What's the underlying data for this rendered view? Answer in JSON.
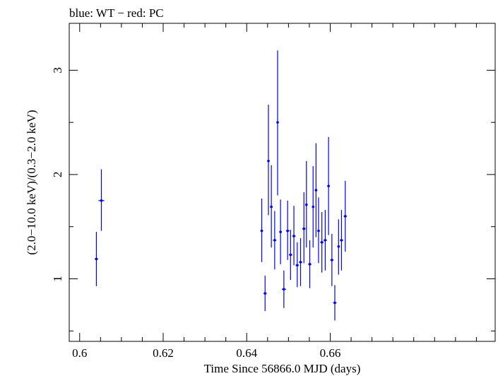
{
  "chart_data": {
    "type": "scatter",
    "title": "blue: WT − red: PC",
    "xlabel": "Time Since 56866.0 MJD (days)",
    "ylabel": "(2.0−10.0 keV)/(0.3−2.0 keV)",
    "xlim": [
      0.5975,
      0.6995
    ],
    "ylim": [
      0.4,
      3.45
    ],
    "x_ticks": [
      0.6,
      0.62,
      0.64,
      0.66
    ],
    "x_tick_labels": [
      "0.6",
      "0.62",
      "0.64",
      "0.66"
    ],
    "y_ticks": [
      1,
      2,
      3
    ],
    "y_tick_labels": [
      "1",
      "2",
      "3"
    ],
    "grid": false,
    "series": [
      {
        "name": "WT",
        "color": "#0000ff",
        "points": [
          {
            "x": 0.604,
            "y": 1.19,
            "xerr": 0.0004,
            "ylo": 0.93,
            "yhi": 1.45
          },
          {
            "x": 0.6052,
            "y": 1.75,
            "xerr": 0.0007,
            "ylo": 1.46,
            "yhi": 2.05
          },
          {
            "x": 0.6436,
            "y": 1.46,
            "xerr": 0.0003,
            "ylo": 1.16,
            "yhi": 1.77
          },
          {
            "x": 0.6444,
            "y": 0.86,
            "xerr": 0.0004,
            "ylo": 0.69,
            "yhi": 1.03
          },
          {
            "x": 0.6452,
            "y": 2.13,
            "xerr": 0.0003,
            "ylo": 1.61,
            "yhi": 2.67
          },
          {
            "x": 0.6459,
            "y": 1.69,
            "xerr": 0.0003,
            "ylo": 1.3,
            "yhi": 2.09
          },
          {
            "x": 0.6467,
            "y": 1.37,
            "xerr": 0.0004,
            "ylo": 1.09,
            "yhi": 1.65
          },
          {
            "x": 0.6474,
            "y": 2.5,
            "xerr": 0.0002,
            "ylo": 1.8,
            "yhi": 3.19
          },
          {
            "x": 0.6481,
            "y": 1.45,
            "xerr": 0.0003,
            "ylo": 1.14,
            "yhi": 1.76
          },
          {
            "x": 0.6489,
            "y": 0.9,
            "xerr": 0.0005,
            "ylo": 0.72,
            "yhi": 1.08
          },
          {
            "x": 0.6498,
            "y": 1.46,
            "xerr": 0.0004,
            "ylo": 1.18,
            "yhi": 1.75
          },
          {
            "x": 0.6505,
            "y": 1.23,
            "xerr": 0.0004,
            "ylo": 0.99,
            "yhi": 1.47
          },
          {
            "x": 0.6513,
            "y": 1.41,
            "xerr": 0.0004,
            "ylo": 1.13,
            "yhi": 1.7
          },
          {
            "x": 0.6521,
            "y": 1.13,
            "xerr": 0.0004,
            "ylo": 0.92,
            "yhi": 1.35
          },
          {
            "x": 0.6529,
            "y": 1.16,
            "xerr": 0.0004,
            "ylo": 0.93,
            "yhi": 1.39
          },
          {
            "x": 0.6537,
            "y": 1.48,
            "xerr": 0.0004,
            "ylo": 1.15,
            "yhi": 1.83
          },
          {
            "x": 0.6543,
            "y": 1.71,
            "xerr": 0.0003,
            "ylo": 1.3,
            "yhi": 2.13
          },
          {
            "x": 0.6551,
            "y": 1.14,
            "xerr": 0.0004,
            "ylo": 0.91,
            "yhi": 1.37
          },
          {
            "x": 0.6559,
            "y": 1.69,
            "xerr": 0.0003,
            "ylo": 1.3,
            "yhi": 2.08
          },
          {
            "x": 0.6566,
            "y": 1.85,
            "xerr": 0.0003,
            "ylo": 1.4,
            "yhi": 2.3
          },
          {
            "x": 0.6572,
            "y": 1.46,
            "xerr": 0.0003,
            "ylo": 1.15,
            "yhi": 1.78
          },
          {
            "x": 0.658,
            "y": 1.35,
            "xerr": 0.0004,
            "ylo": 1.06,
            "yhi": 1.64
          },
          {
            "x": 0.6588,
            "y": 1.37,
            "xerr": 0.0004,
            "ylo": 1.08,
            "yhi": 1.66
          },
          {
            "x": 0.6596,
            "y": 1.89,
            "xerr": 0.0003,
            "ylo": 1.42,
            "yhi": 2.36
          },
          {
            "x": 0.6604,
            "y": 1.18,
            "xerr": 0.0004,
            "ylo": 0.93,
            "yhi": 1.43
          },
          {
            "x": 0.6611,
            "y": 0.77,
            "xerr": 0.0004,
            "ylo": 0.6,
            "yhi": 0.94
          },
          {
            "x": 0.662,
            "y": 1.31,
            "xerr": 0.0003,
            "ylo": 1.04,
            "yhi": 1.57
          },
          {
            "x": 0.6627,
            "y": 1.37,
            "xerr": 0.0004,
            "ylo": 1.08,
            "yhi": 1.66
          },
          {
            "x": 0.6636,
            "y": 1.6,
            "xerr": 0.0004,
            "ylo": 1.26,
            "yhi": 1.94
          }
        ]
      }
    ]
  }
}
